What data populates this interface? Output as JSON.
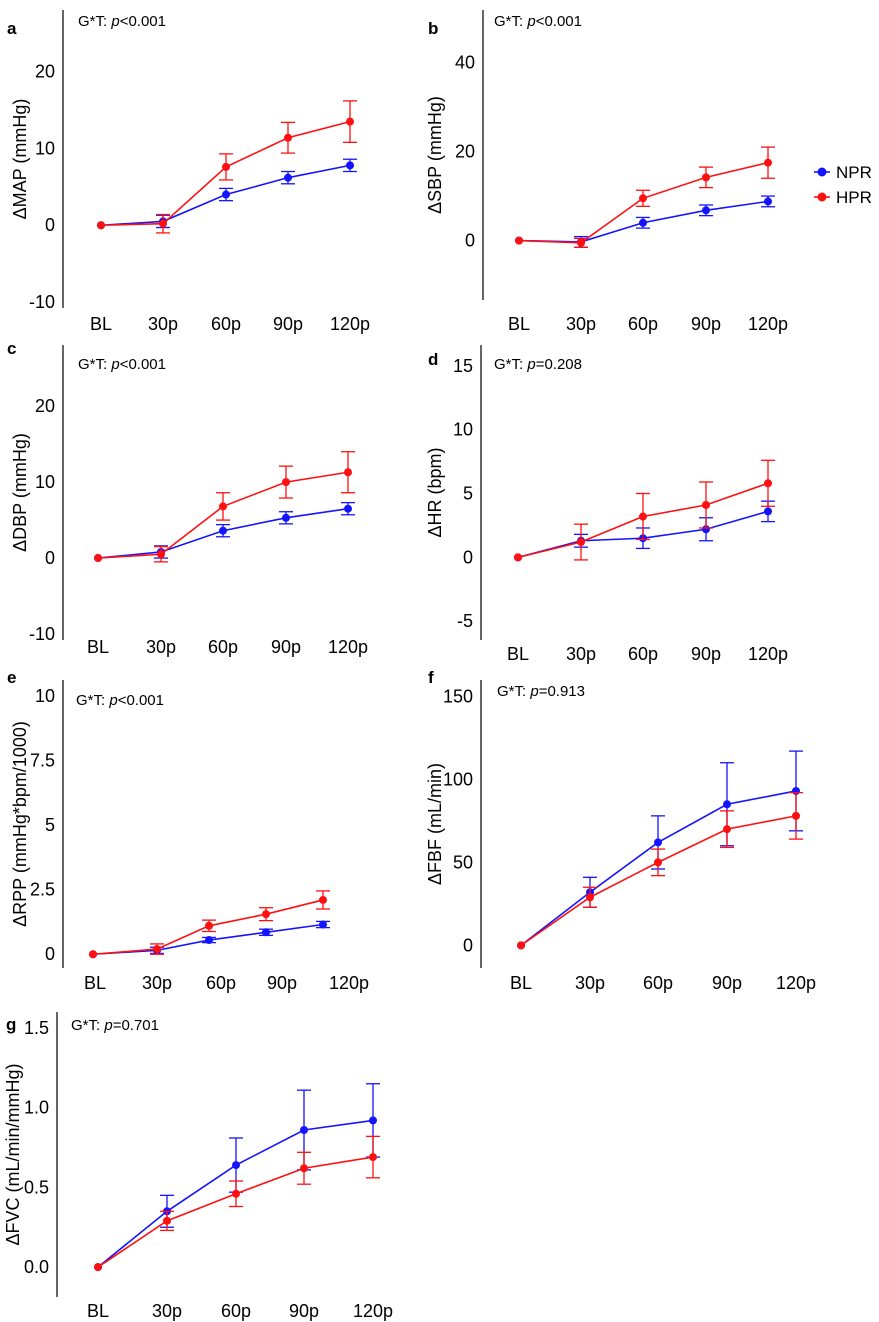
{
  "legend": [
    {
      "label": "NPR",
      "color": "#1414ff"
    },
    {
      "label": "HPR",
      "color": "#ff1010"
    }
  ],
  "chart_data": [
    {
      "panel": "a",
      "type": "line",
      "ylabel": "ΔMAP (mmHg)",
      "annotation": {
        "prefix": "G*T: ",
        "p": "p",
        "rest": "<0.001"
      },
      "categories": [
        "BL",
        "30p",
        "60p",
        "90p",
        "120p"
      ],
      "yticks": [
        -10,
        0,
        10,
        20
      ],
      "ylim": [
        -10,
        27
      ],
      "series": [
        {
          "name": "NPR",
          "values": [
            0,
            0.5,
            4,
            6.2,
            7.8
          ],
          "err": [
            0,
            0.8,
            0.8,
            0.8,
            0.8
          ]
        },
        {
          "name": "HPR",
          "values": [
            0,
            0.2,
            7.6,
            11.4,
            13.5
          ],
          "err": [
            0,
            1.2,
            1.7,
            2.0,
            2.7
          ]
        }
      ]
    },
    {
      "panel": "b",
      "type": "line",
      "ylabel": "ΔSBP (mmHg)",
      "annotation": {
        "prefix": "G*T: ",
        "p": "p",
        "rest": "<0.001"
      },
      "categories": [
        "BL",
        "30p",
        "60p",
        "90p",
        "120p"
      ],
      "yticks": [
        0,
        20,
        40
      ],
      "ylim": [
        -12,
        50
      ],
      "series": [
        {
          "name": "NPR",
          "values": [
            0,
            -0.3,
            4,
            6.8,
            8.8
          ],
          "err": [
            0,
            1.2,
            1.2,
            1.2,
            1.2
          ]
        },
        {
          "name": "HPR",
          "values": [
            0,
            -0.5,
            9.5,
            14.2,
            17.5
          ],
          "err": [
            0,
            1.0,
            1.8,
            2.3,
            3.5
          ]
        }
      ]
    },
    {
      "panel": "c",
      "type": "line",
      "ylabel": "ΔDBP (mmHg)",
      "annotation": {
        "prefix": "G*T: ",
        "p": "p",
        "rest": "<0.001"
      },
      "categories": [
        "BL",
        "30p",
        "60p",
        "90p",
        "120p"
      ],
      "yticks": [
        -10,
        0,
        10,
        20
      ],
      "ylim": [
        -10,
        27
      ],
      "series": [
        {
          "name": "NPR",
          "values": [
            0,
            0.8,
            3.6,
            5.3,
            6.5
          ],
          "err": [
            0,
            0.8,
            0.8,
            0.8,
            0.8
          ]
        },
        {
          "name": "HPR",
          "values": [
            0,
            0.5,
            6.8,
            10,
            11.3
          ],
          "err": [
            0,
            1.0,
            1.8,
            2.1,
            2.7
          ]
        }
      ]
    },
    {
      "panel": "d",
      "type": "line",
      "ylabel": "ΔHR (bpm)",
      "annotation": {
        "prefix": "G*T: ",
        "p": "p",
        "rest": "=0.208"
      },
      "categories": [
        "BL",
        "30p",
        "60p",
        "90p",
        "120p"
      ],
      "yticks": [
        -5,
        0,
        5,
        10,
        15
      ],
      "ylim": [
        -6,
        16
      ],
      "series": [
        {
          "name": "NPR",
          "values": [
            0,
            1.3,
            1.5,
            2.2,
            3.6
          ],
          "err": [
            0,
            0.5,
            0.8,
            0.9,
            0.8
          ]
        },
        {
          "name": "HPR",
          "values": [
            0,
            1.2,
            3.2,
            4.1,
            5.8
          ],
          "err": [
            0,
            1.4,
            1.8,
            1.8,
            1.8
          ]
        }
      ]
    },
    {
      "panel": "e",
      "type": "line",
      "ylabel": "ΔRPP (mmHg*bpm/1000)",
      "annotation": {
        "prefix": "G*T: ",
        "p": "p",
        "rest": "<0.001"
      },
      "categories": [
        "BL",
        "30p",
        "60p",
        "90p",
        "120p"
      ],
      "yticks": [
        0,
        2.5,
        5,
        7.5,
        10
      ],
      "ylim": [
        -0.3,
        10.3
      ],
      "series": [
        {
          "name": "NPR",
          "values": [
            0,
            0.15,
            0.55,
            0.85,
            1.15
          ],
          "err": [
            0,
            0.12,
            0.1,
            0.12,
            0.12
          ]
        },
        {
          "name": "HPR",
          "values": [
            0,
            0.2,
            1.1,
            1.55,
            2.1
          ],
          "err": [
            0,
            0.2,
            0.22,
            0.25,
            0.35
          ]
        }
      ]
    },
    {
      "panel": "f",
      "type": "line",
      "ylabel": "ΔFBF (mL/min)",
      "annotation": {
        "prefix": "G*T: ",
        "p": "p",
        "rest": "=0.913"
      },
      "categories": [
        "BL",
        "30p",
        "60p",
        "90p",
        "120p"
      ],
      "yticks": [
        0,
        50,
        100,
        150
      ],
      "ylim": [
        -10,
        155
      ],
      "series": [
        {
          "name": "NPR",
          "values": [
            0,
            32,
            62,
            85,
            93
          ],
          "err": [
            0,
            9,
            16,
            25,
            24
          ]
        },
        {
          "name": "HPR",
          "values": [
            0,
            29,
            50,
            70,
            78
          ],
          "err": [
            0,
            6,
            8,
            11,
            14
          ]
        }
      ]
    },
    {
      "panel": "g",
      "type": "line",
      "ylabel": "ΔFVC (mL/min/mmHg)",
      "annotation": {
        "prefix": "G*T: ",
        "p": "p",
        "rest": "=0.701"
      },
      "categories": [
        "BL",
        "30p",
        "60p",
        "90p",
        "120p"
      ],
      "yticks": [
        0.0,
        0.5,
        1.0,
        1.5
      ],
      "yticklabels": [
        "0.0",
        "0.5",
        "1.0",
        "1.5"
      ],
      "ylim": [
        -0.15,
        1.55
      ],
      "series": [
        {
          "name": "NPR",
          "values": [
            0,
            0.35,
            0.64,
            0.86,
            0.92
          ],
          "err": [
            0,
            0.1,
            0.17,
            0.25,
            0.23
          ]
        },
        {
          "name": "HPR",
          "values": [
            0,
            0.29,
            0.46,
            0.62,
            0.69
          ],
          "err": [
            0,
            0.06,
            0.08,
            0.1,
            0.13
          ]
        }
      ]
    }
  ]
}
